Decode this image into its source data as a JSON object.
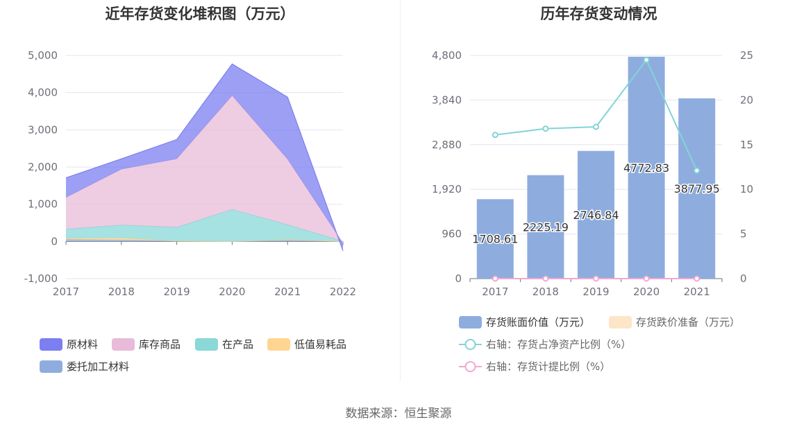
{
  "charts": {
    "left": {
      "title": "近年存货变化堆积图（万元）"
    },
    "right": {
      "title": "历年存货变动情况"
    }
  },
  "source_text": "数据来源：恒生聚源",
  "colors": {
    "raw_material": "#7b7ff0",
    "inventory_goods": "#e8bcd9",
    "work_in_progress": "#8ad8d8",
    "low_value": "#ffd591",
    "consigned": "#8eadde",
    "bar": "#8eadde",
    "bar_reserve": "#fde5c8",
    "line_ratio": "#82d4d8",
    "line_provision": "#f0a8d2"
  },
  "chart_data": [
    {
      "type": "area",
      "stacked": true,
      "title": "近年存货变化堆积图（万元）",
      "x": [
        "2017",
        "2018",
        "2019",
        "2020",
        "2021",
        "2022"
      ],
      "ylim": [
        -1000,
        5000
      ],
      "yticks": [
        "5,000",
        "4,000",
        "3,000",
        "2,000",
        "1,000",
        "0",
        "-1,000"
      ],
      "ytick_values": [
        5000,
        4000,
        3000,
        2000,
        1000,
        0,
        -1000
      ],
      "grid": true,
      "legend_position": "bottom-left",
      "series": [
        {
          "name": "委托加工材料",
          "key": "consigned",
          "values": [
            50,
            40,
            10,
            0,
            30,
            0
          ]
        },
        {
          "name": "低值易耗品",
          "key": "low_value",
          "values": [
            30,
            50,
            0,
            0,
            20,
            0
          ]
        },
        {
          "name": "在产品",
          "key": "work_in_progress",
          "values": [
            250,
            350,
            370,
            860,
            400,
            0
          ]
        },
        {
          "name": "库存商品",
          "key": "inventory_goods",
          "values": [
            850,
            1500,
            1840,
            3060,
            1760,
            -50
          ]
        },
        {
          "name": "原材料",
          "key": "raw_material",
          "values": [
            530,
            280,
            520,
            850,
            1670,
            -200
          ]
        }
      ],
      "legend_order": [
        "原材料",
        "库存商品",
        "在产品",
        "低值易耗品",
        "委托加工材料"
      ]
    },
    {
      "type": "bar",
      "title": "历年存货变动情况",
      "categories": [
        "2017",
        "2018",
        "2019",
        "2020",
        "2021"
      ],
      "ylim": [
        0,
        4800
      ],
      "yticks": [
        "4,800",
        "3,840",
        "2,880",
        "1,920",
        "960",
        "0"
      ],
      "ytick_values": [
        4800,
        3840,
        2880,
        1920,
        960,
        0
      ],
      "y2lim": [
        0,
        25
      ],
      "y2ticks": [
        "25",
        "20",
        "15",
        "10",
        "5",
        "0"
      ],
      "y2tick_values": [
        25,
        20,
        15,
        10,
        5,
        0
      ],
      "grid": true,
      "legend_position": "bottom",
      "series": [
        {
          "name": "存货账面价值（万元）",
          "kind": "bar",
          "axis": "left",
          "values": [
            1708.61,
            2225.19,
            2746.84,
            4772.83,
            3877.95
          ],
          "labels": [
            "1708.61",
            "2225.19",
            "2746.84",
            "4772.83",
            "3877.95"
          ]
        },
        {
          "name": "存货跌价准备（万元）",
          "kind": "bar",
          "axis": "left",
          "values": [
            0,
            0,
            0,
            0,
            0
          ]
        },
        {
          "name": "右轴：存货占净资产比例（%）",
          "kind": "line",
          "axis": "right",
          "values": [
            16.1,
            16.8,
            17.0,
            24.5,
            12.1
          ]
        },
        {
          "name": "右轴：存货计提比例（%）",
          "kind": "line",
          "axis": "right",
          "values": [
            0,
            0,
            0,
            0,
            0
          ]
        }
      ]
    }
  ]
}
